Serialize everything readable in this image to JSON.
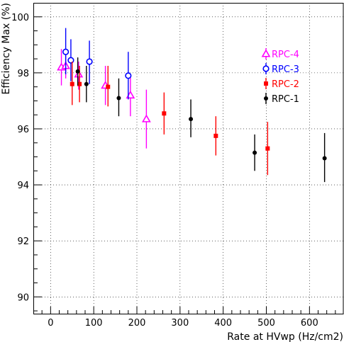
{
  "chart_data": {
    "type": "scatter",
    "title": "",
    "xlabel": "Rate at HVwp (Hz/cm2)",
    "ylabel": "Efficiency Max (%)",
    "xlim": [
      -40,
      680
    ],
    "ylim": [
      89.4,
      100.5
    ],
    "xticks": [
      0,
      100,
      200,
      300,
      400,
      500,
      600
    ],
    "yticks": [
      90,
      92,
      94,
      96,
      98,
      100
    ],
    "grid": true,
    "legend": "right-upper",
    "error_bars": true,
    "series": [
      {
        "name": "RPC-4",
        "color": "#ff00ff",
        "marker": "open-triangle",
        "points": [
          {
            "x": 25,
            "y": 98.2,
            "lo": 97.55,
            "hi": 98.85
          },
          {
            "x": 35,
            "y": 98.25,
            "lo": 97.8,
            "hi": 98.7
          },
          {
            "x": 65,
            "y": 97.95,
            "lo": 97.4,
            "hi": 98.4
          },
          {
            "x": 127,
            "y": 97.55,
            "lo": 96.85,
            "hi": 98.25
          },
          {
            "x": 185,
            "y": 97.2,
            "lo": 96.45,
            "hi": 97.9
          },
          {
            "x": 222,
            "y": 96.35,
            "lo": 95.3,
            "hi": 97.4
          }
        ]
      },
      {
        "name": "RPC-3",
        "color": "#0000ff",
        "marker": "open-circle",
        "points": [
          {
            "x": 35,
            "y": 98.75,
            "lo": 97.95,
            "hi": 99.6
          },
          {
            "x": 47,
            "y": 98.45,
            "lo": 97.7,
            "hi": 99.2
          },
          {
            "x": 90,
            "y": 98.4,
            "lo": 97.6,
            "hi": 99.15
          },
          {
            "x": 180,
            "y": 97.9,
            "lo": 97.05,
            "hi": 98.75
          }
        ]
      },
      {
        "name": "RPC-2",
        "color": "#ff0000",
        "marker": "filled-square",
        "points": [
          {
            "x": 50,
            "y": 97.6,
            "lo": 96.85,
            "hi": 98.4
          },
          {
            "x": 67,
            "y": 97.6,
            "lo": 96.95,
            "hi": 98.25
          },
          {
            "x": 133,
            "y": 97.5,
            "lo": 96.8,
            "hi": 98.25
          },
          {
            "x": 263,
            "y": 96.55,
            "lo": 95.8,
            "hi": 97.3
          },
          {
            "x": 383,
            "y": 95.75,
            "lo": 95.05,
            "hi": 96.45
          },
          {
            "x": 503,
            "y": 95.3,
            "lo": 94.35,
            "hi": 96.25
          }
        ]
      },
      {
        "name": "RPC-1",
        "color": "#000000",
        "marker": "filled-circle",
        "points": [
          {
            "x": 63,
            "y": 98.05,
            "lo": 97.55,
            "hi": 98.55
          },
          {
            "x": 83,
            "y": 97.6,
            "lo": 96.95,
            "hi": 98.25
          },
          {
            "x": 158,
            "y": 97.1,
            "lo": 96.45,
            "hi": 97.8
          },
          {
            "x": 325,
            "y": 96.35,
            "lo": 95.7,
            "hi": 97.05
          },
          {
            "x": 473,
            "y": 95.15,
            "lo": 94.5,
            "hi": 95.8
          },
          {
            "x": 635,
            "y": 94.95,
            "lo": 94.1,
            "hi": 95.85
          }
        ]
      }
    ]
  }
}
